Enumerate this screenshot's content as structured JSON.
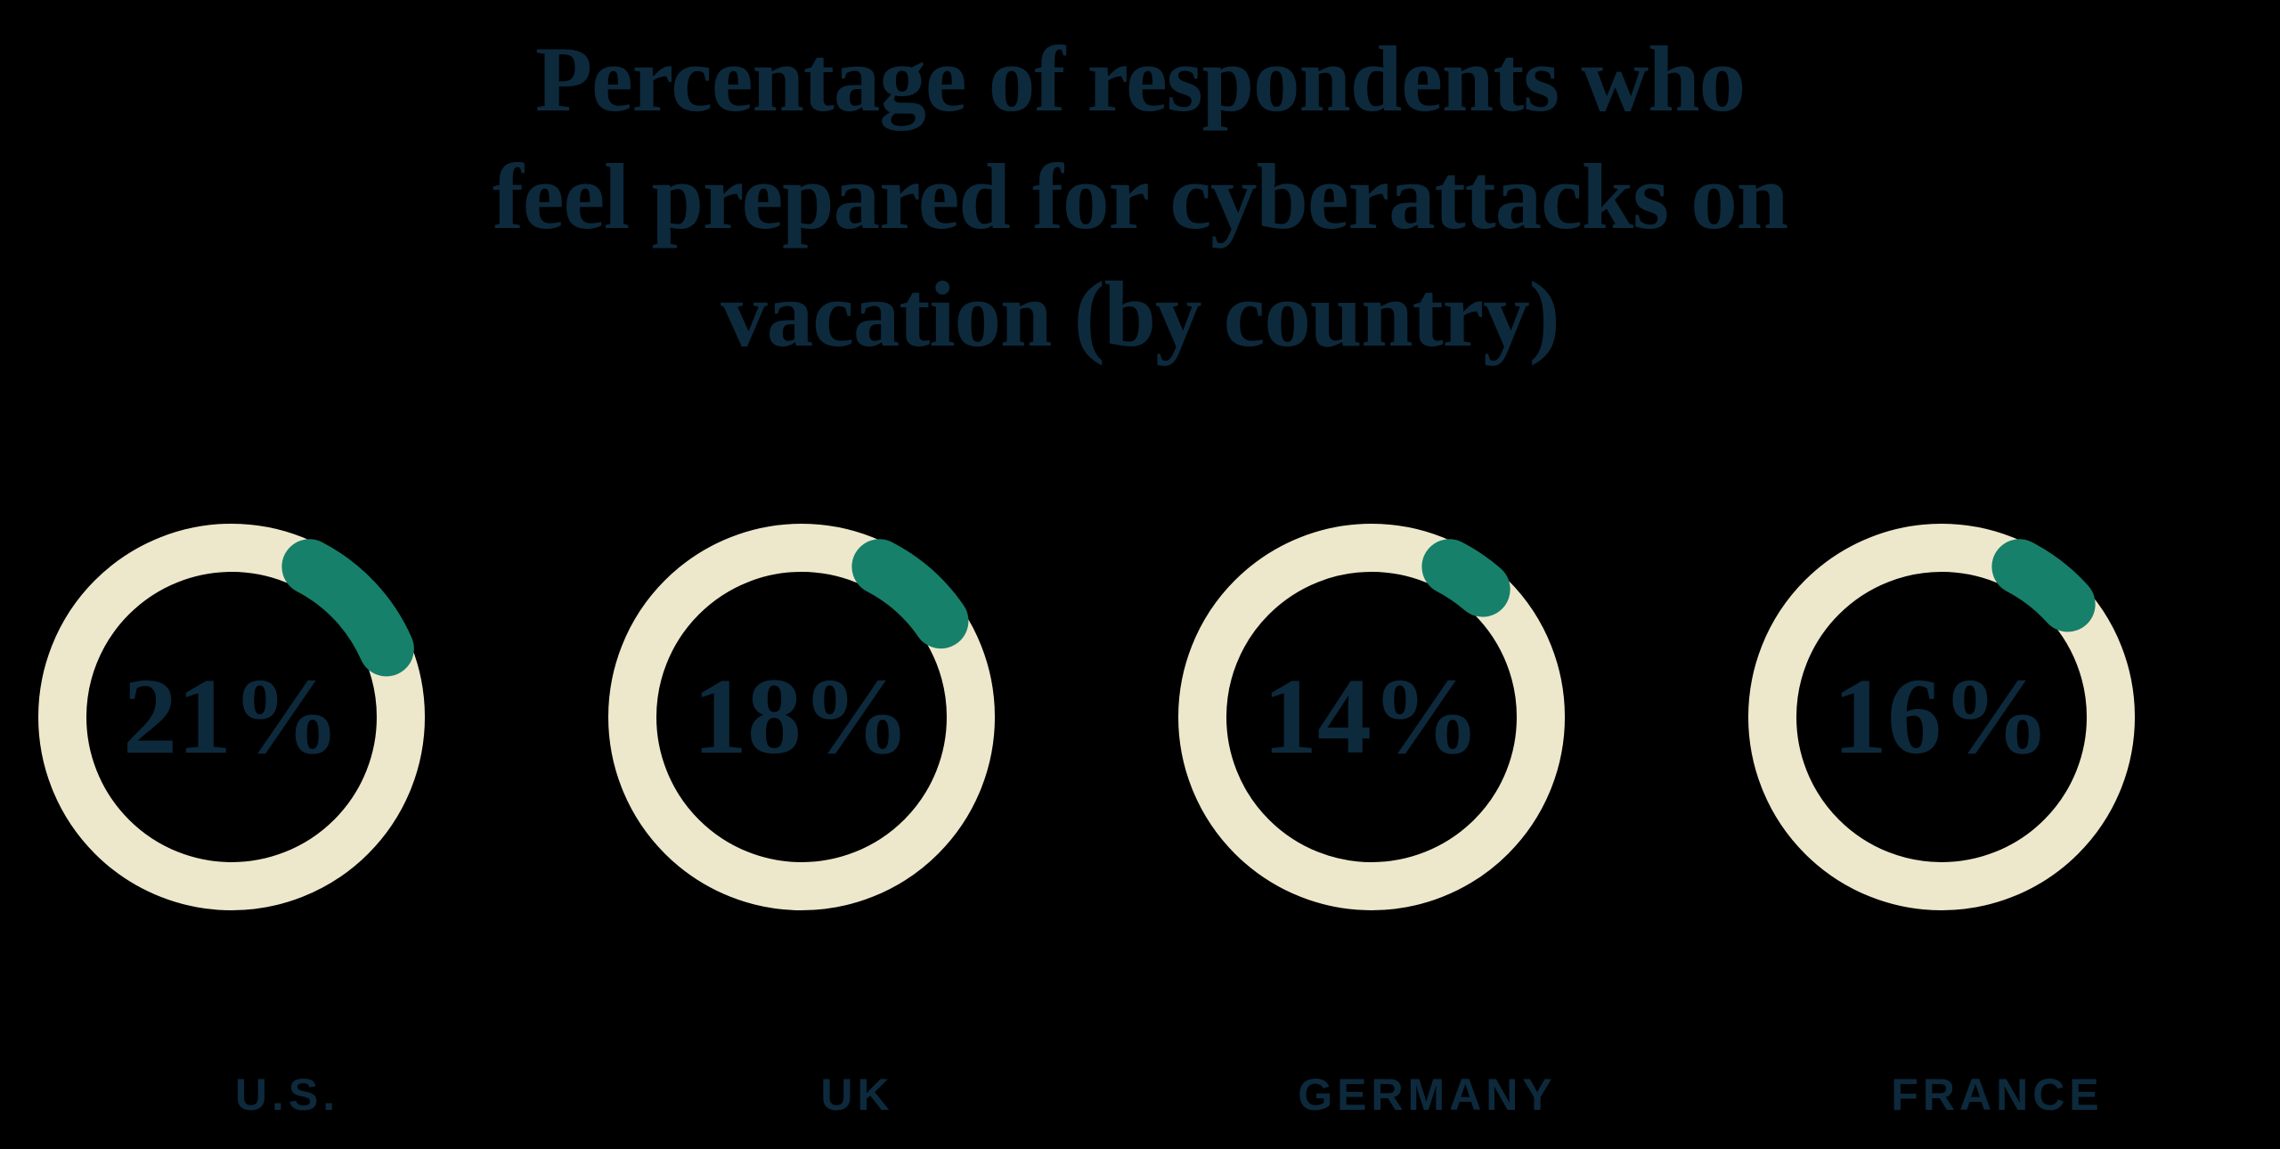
{
  "title": {
    "lines": [
      "Percentage of respondents who",
      "feel prepared for cyberattacks on",
      "vacation (by country)"
    ]
  },
  "chart_data": {
    "type": "pie",
    "variant": "donut-progress-gauges",
    "title": "Percentage of respondents who feel prepared for cyberattacks on vacation (by country)",
    "categories": [
      "U.S.",
      "UK",
      "GERMANY",
      "FRANCE"
    ],
    "values": [
      21,
      18,
      14,
      16
    ],
    "unit": "%",
    "value_labels": [
      "21%",
      "18%",
      "14%",
      "16%"
    ],
    "legend_position": "label-below-each-donut",
    "arc_visible_start_deg": 18,
    "arc_direction": "clockwise-from-top",
    "colors": {
      "track": "#EDE8CC",
      "progress": "#17806A",
      "text": "#0D2A3D",
      "background": "#000000"
    }
  },
  "donuts": [
    {
      "label": "U.S.",
      "value": 21,
      "display": "21%"
    },
    {
      "label": "UK",
      "value": 18,
      "display": "18%"
    },
    {
      "label": "GERMANY",
      "value": 14,
      "display": "14%"
    },
    {
      "label": "FRANCE",
      "value": 16,
      "display": "16%"
    }
  ]
}
